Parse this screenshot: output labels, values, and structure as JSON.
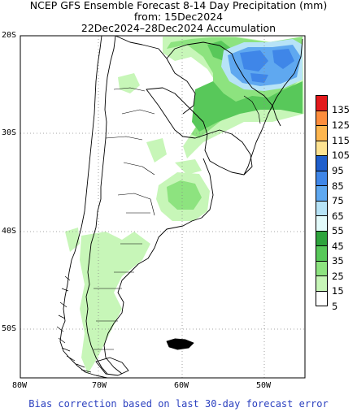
{
  "title": {
    "line1": "NCEP GFS Ensemble Forecast 8-14 Day Precipitation (mm)",
    "line2": "from: 15Dec2024",
    "line3": "22Dec2024–28Dec2024 Accumulation"
  },
  "lat_labels": [
    "20S",
    "30S",
    "40S",
    "50S"
  ],
  "lon_labels": [
    "80W",
    "70W",
    "60W",
    "50W"
  ],
  "legend": {
    "levels": [
      "135",
      "125",
      "115",
      "105",
      "95",
      "85",
      "75",
      "65",
      "55",
      "45",
      "35",
      "25",
      "15",
      "5"
    ],
    "colors": [
      "#e31a1c",
      "#fd8d3c",
      "#fdb64f",
      "#fee391",
      "#1f5fcc",
      "#3f86e8",
      "#5fa8f0",
      "#b7e3f7",
      "#e3fbfb",
      "#2ea33c",
      "#58c85a",
      "#8de37f",
      "#c7f6b8",
      "#ffffff"
    ]
  },
  "footer": "Bias correction based on last 30-day forecast error"
}
